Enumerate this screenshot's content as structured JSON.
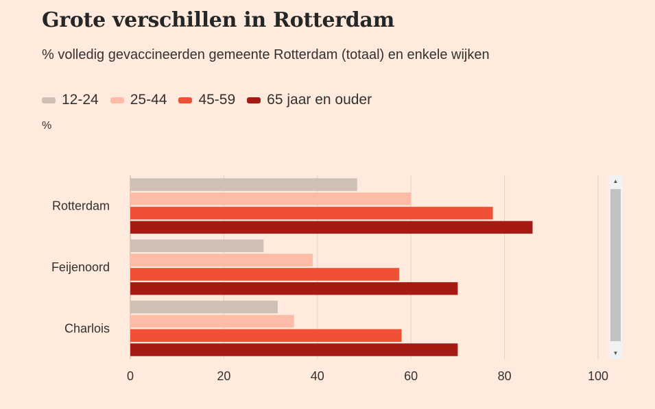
{
  "chart_data": {
    "type": "bar",
    "orientation": "horizontal",
    "title": "Grote verschillen in Rotterdam",
    "subtitle": "% volledig gevaccineerden gemeente Rotterdam (totaal) en enkele wijken",
    "unit_label": "%",
    "categories": [
      "Rotterdam",
      "Feijenoord",
      "Charlois"
    ],
    "series": [
      {
        "name": "12-24",
        "color": "#cec0b5",
        "values": [
          48.5,
          28.5,
          31.5
        ]
      },
      {
        "name": "25-44",
        "color": "#febca7",
        "values": [
          60,
          39,
          35
        ]
      },
      {
        "name": "45-59",
        "color": "#f05136",
        "values": [
          77.5,
          57.5,
          58
        ]
      },
      {
        "name": "65 jaar en ouder",
        "color": "#a51a13",
        "values": [
          86,
          70,
          70
        ]
      }
    ],
    "xlim": [
      0,
      100
    ],
    "xticks": [
      "0",
      "20",
      "40",
      "60",
      "80",
      "100"
    ],
    "grid": true,
    "legend_position": "top-left"
  },
  "scrollbar": {
    "up_icon": "▲",
    "down_icon": "▼"
  }
}
